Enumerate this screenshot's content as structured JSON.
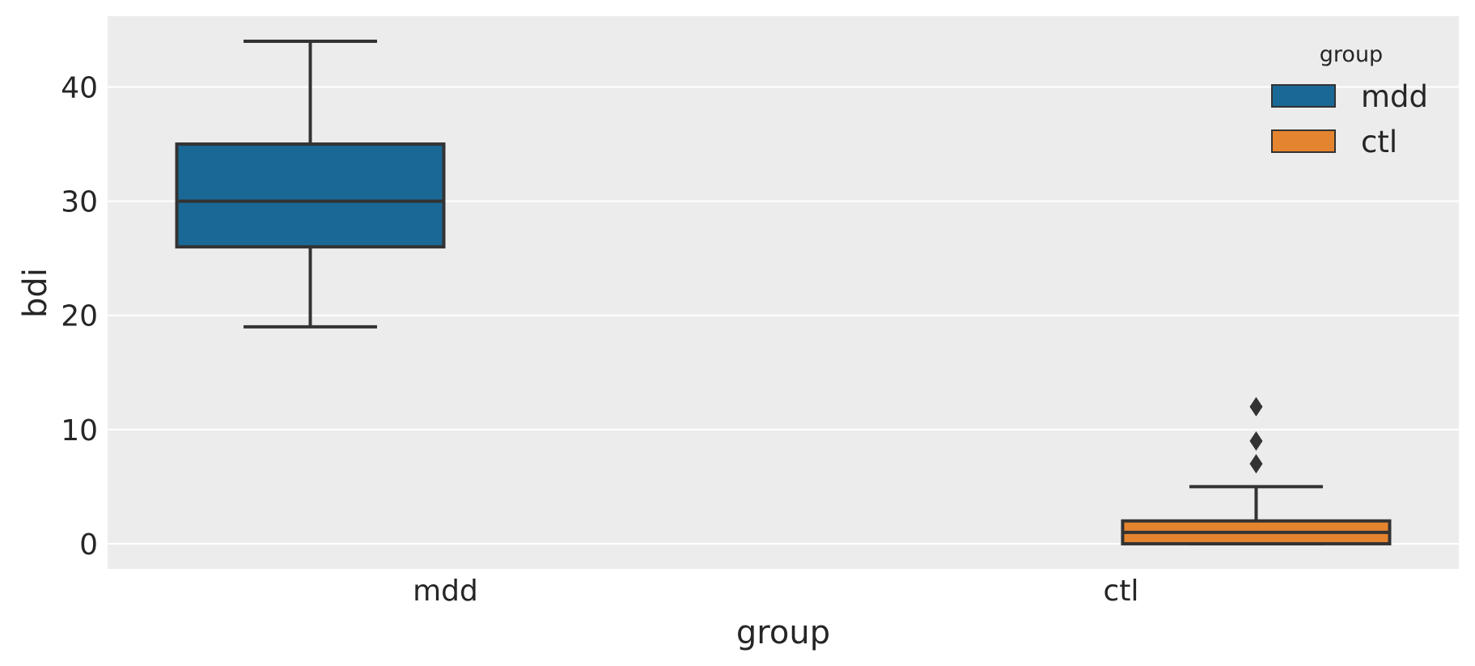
{
  "chart_data": {
    "type": "box",
    "xlabel": "group",
    "ylabel": "bdi",
    "categories": [
      "mdd",
      "ctl"
    ],
    "ylim": [
      -2.2,
      46.2
    ],
    "yticks": [
      0,
      10,
      20,
      30,
      40
    ],
    "grid": true,
    "legend": {
      "title": "group",
      "position": "top-right",
      "entries": [
        {
          "label": "mdd",
          "color": "#1a6896"
        },
        {
          "label": "ctl",
          "color": "#e4842e"
        }
      ]
    },
    "series": [
      {
        "group": "mdd",
        "category": "mdd",
        "min": 19,
        "q1": 26,
        "median": 30,
        "q3": 35,
        "max": 44,
        "outliers": [],
        "color": "#1a6896"
      },
      {
        "group": "ctl",
        "category": "ctl",
        "min": 0,
        "q1": 0,
        "median": 1,
        "q3": 2,
        "max": 5,
        "outliers": [
          7,
          9,
          12
        ],
        "color": "#e4842e"
      }
    ]
  },
  "colors": {
    "plot_background": "#ececec",
    "grid": "#ffffff",
    "edge": "#333333",
    "text": "#262626"
  }
}
